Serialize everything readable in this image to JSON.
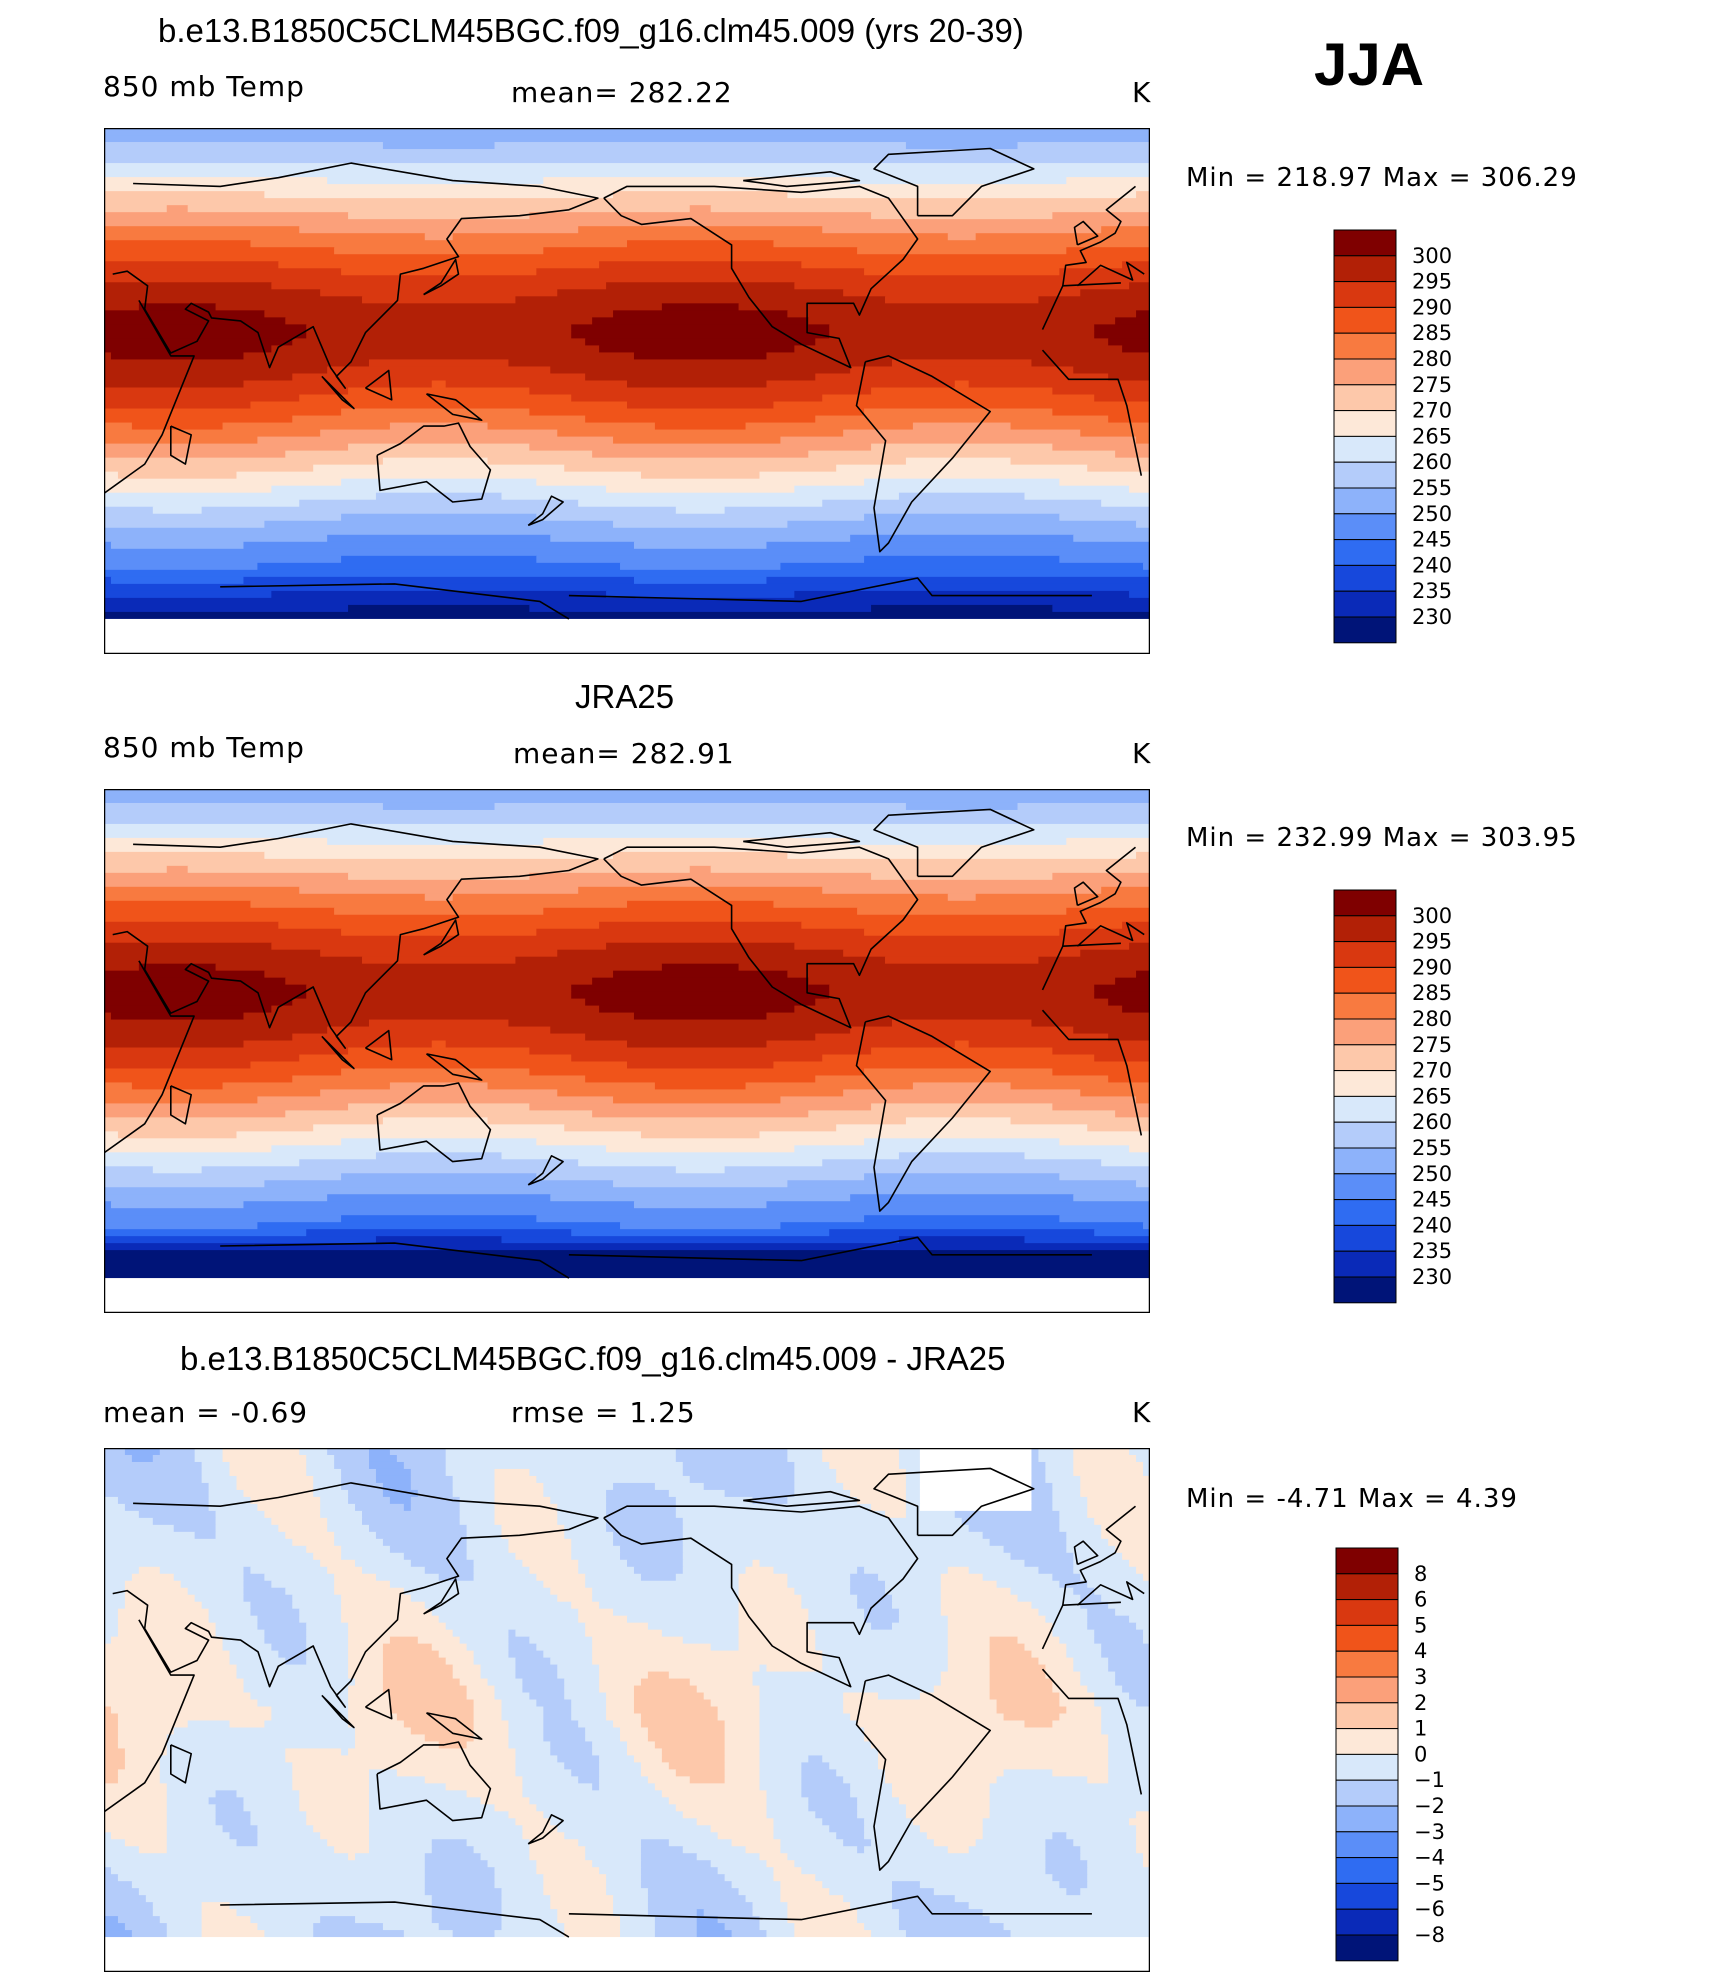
{
  "season": "JJA",
  "chart_data": [
    {
      "type": "heatmap",
      "title": "b.e13.B1850C5CLM45BGC.f09_g16.clm45.009 (yrs 20-39)",
      "left_label": "850 mb Temp",
      "center_label": "mean= 282.22",
      "units": "K",
      "minmax": "Min = 218.97 Max = 306.29",
      "levels": [
        "300",
        "295",
        "290",
        "285",
        "280",
        "275",
        "270",
        "265",
        "260",
        "255",
        "250",
        "245",
        "240",
        "235",
        "230"
      ],
      "colors": [
        "#7f0000",
        "#b22006",
        "#d93810",
        "#f0541a",
        "#f87a40",
        "#fba07a",
        "#fdc8aa",
        "#fde8d8",
        "#d8e8fa",
        "#b4ccfa",
        "#8db2fa",
        "#5b8ef8",
        "#2f6cf2",
        "#1748dc",
        "#0a2ab8",
        "#001478"
      ],
      "field": "model"
    },
    {
      "type": "heatmap",
      "title": "JRA25",
      "left_label": "850 mb Temp",
      "center_label": "mean= 282.91",
      "units": "K",
      "minmax": "Min = 232.99 Max = 303.95",
      "levels": [
        "300",
        "295",
        "290",
        "285",
        "280",
        "275",
        "270",
        "265",
        "260",
        "255",
        "250",
        "245",
        "240",
        "235",
        "230"
      ],
      "colors": [
        "#7f0000",
        "#b22006",
        "#d93810",
        "#f0541a",
        "#f87a40",
        "#fba07a",
        "#fdc8aa",
        "#fde8d8",
        "#d8e8fa",
        "#b4ccfa",
        "#8db2fa",
        "#5b8ef8",
        "#2f6cf2",
        "#1748dc",
        "#0a2ab8",
        "#001478"
      ],
      "field": "obs"
    },
    {
      "type": "heatmap",
      "title": "b.e13.B1850C5CLM45BGC.f09_g16.clm45.009 - JRA25",
      "left_label": "mean =   -0.69",
      "center_label": "rmse =    1.25",
      "units": "K",
      "minmax": "Min =   -4.71 Max =    4.39",
      "levels": [
        "8",
        "6",
        "5",
        "4",
        "3",
        "2",
        "1",
        "0",
        "−1",
        "−2",
        "−3",
        "−4",
        "−5",
        "−6",
        "−8"
      ],
      "colors": [
        "#7f0000",
        "#b22006",
        "#d93810",
        "#f0541a",
        "#f87a40",
        "#fba07a",
        "#fdc8aa",
        "#fde8d8",
        "#d8e8fa",
        "#b4ccfa",
        "#8db2fa",
        "#5b8ef8",
        "#2f6cf2",
        "#1748dc",
        "#0a2ab8",
        "#001478"
      ],
      "field": "diff"
    }
  ]
}
